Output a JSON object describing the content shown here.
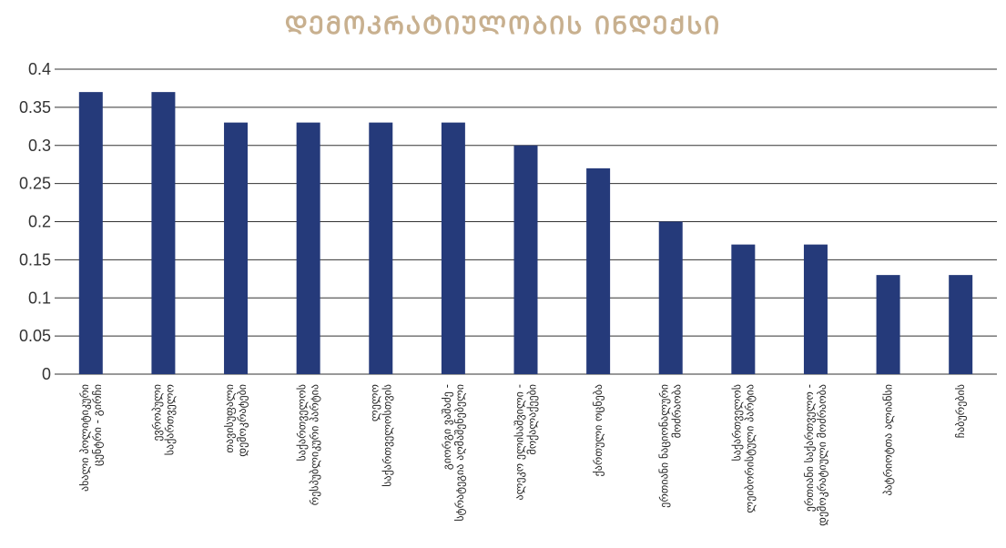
{
  "chart_data": {
    "type": "bar",
    "title": "ᲓᲔᲛᲝᲙᲠᲐᲢᲘᲣᲚᲝᲑᲘᲡ ᲘᲜᲓᲔᲥᲡᲘ",
    "categories": [
      [
        "ახალი პოლიტიკური",
        "ცენტრი - გირჩი"
      ],
      [
        "ევროპული",
        "საქართველო"
      ],
      [
        "თავისუფალი",
        "დემოკრატები"
      ],
      [
        "საქართველოს",
        "რესპუბლიკური პარტია"
      ],
      [
        "ლელო",
        "საქართველოსთვის"
      ],
      [
        "გიორგი ვაშაძე -",
        "სტრატეგია აღმაშენებელი"
      ],
      [
        "ალეკო ელისაშვილი -",
        "მოქალაქეები"
      ],
      [
        "ქართული ოცნება"
      ],
      [
        "ერთიანი ნაციონალური",
        "მოძრაობა"
      ],
      [
        "საქართველოს",
        "ლეიბორისტული პარტია"
      ],
      [
        "ერთიანი საქართველო -",
        "დემოკრატიული მოძრაობა"
      ],
      [
        "პატრიოტთა ალიანსი"
      ],
      [
        "ჩაბურების"
      ]
    ],
    "values": [
      0.37,
      0.37,
      0.33,
      0.33,
      0.33,
      0.33,
      0.3,
      0.27,
      0.2,
      0.17,
      0.17,
      0.13,
      0.13
    ],
    "ylim": [
      0,
      0.4
    ],
    "yticks": [
      "0",
      "0.05",
      "0.1",
      "0.15",
      "0.2",
      "0.25",
      "0.3",
      "0.35",
      "0.4"
    ],
    "grid": true,
    "bar_color": "#253a7a",
    "title_color": "#c8b08f"
  }
}
